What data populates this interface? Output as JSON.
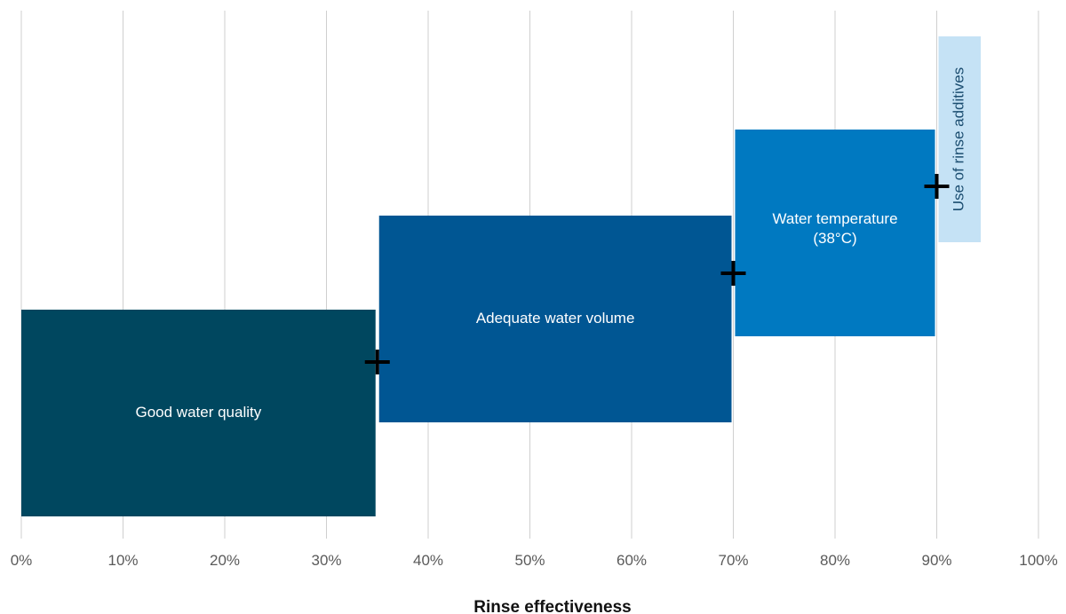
{
  "chart_data": {
    "type": "bar",
    "orientation": "horizontal-stacked-waterfall",
    "xlabel": "Rinse effectiveness",
    "xlim": [
      0,
      100
    ],
    "ticks": [
      "0%",
      "10%",
      "20%",
      "30%",
      "40%",
      "50%",
      "60%",
      "70%",
      "80%",
      "90%",
      "100%"
    ],
    "grid": true,
    "segments": [
      {
        "label": [
          "Good water quality"
        ],
        "start": 0,
        "end": 35,
        "color": "#00475f",
        "text_color": "#ffffff",
        "vertical_text": false
      },
      {
        "label": [
          "Adequate water volume"
        ],
        "start": 35,
        "end": 70,
        "color": "#005693",
        "text_color": "#ffffff",
        "vertical_text": false
      },
      {
        "label": [
          "Water temperature",
          "(38°C)"
        ],
        "start": 70,
        "end": 90,
        "color": "#0079c1",
        "text_color": "#ffffff",
        "vertical_text": false
      },
      {
        "label": [
          "Use of rinse additives"
        ],
        "start": 90,
        "end": 94.5,
        "color": "#c5e2f5",
        "text_color": "#1b4d70",
        "vertical_text": true
      }
    ],
    "plus_markers_at": [
      35,
      70,
      90
    ]
  }
}
